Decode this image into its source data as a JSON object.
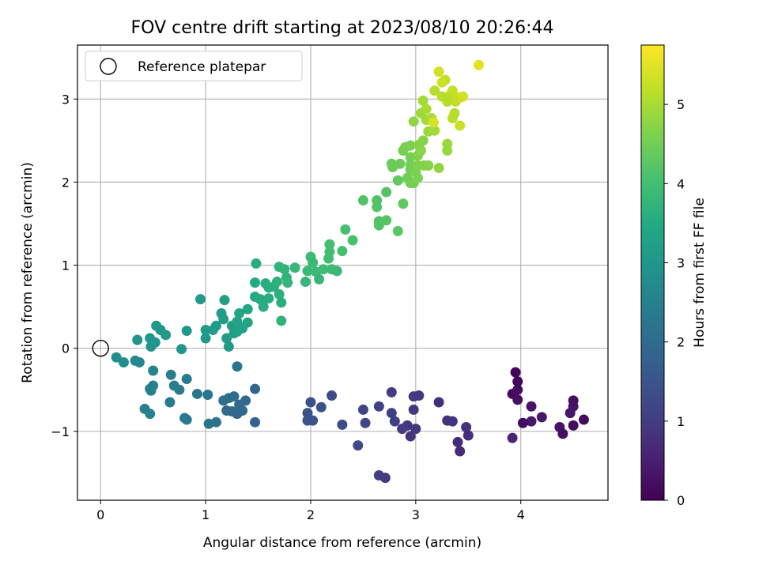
{
  "chart_data": {
    "type": "scatter",
    "title": "FOV centre drift starting at 2023/08/10 20:26:44",
    "xlabel": "Angular distance from reference (arcmin)",
    "ylabel": "Rotation from reference (arcmin)",
    "xlim": [
      -0.22,
      4.83
    ],
    "ylim": [
      -1.83,
      3.65
    ],
    "xticks": [
      0,
      1,
      2,
      3,
      4
    ],
    "yticks": [
      -1,
      0,
      1,
      2,
      3
    ],
    "grid": true,
    "colormap": "viridis",
    "colorbar": {
      "label": "Hours from first FF file",
      "range": [
        0,
        5.75
      ],
      "ticks": [
        0,
        1,
        2,
        3,
        4,
        5
      ]
    },
    "legend": {
      "placement": "top-left",
      "entries": [
        "Reference platepar"
      ]
    },
    "reference_point": {
      "x": 0,
      "y": 0
    },
    "points": [
      {
        "x": 3.95,
        "y": -0.29,
        "h": 0.05
      },
      {
        "x": 3.97,
        "y": -0.4,
        "h": 0.1
      },
      {
        "x": 3.92,
        "y": -0.55,
        "h": 0.15
      },
      {
        "x": 3.97,
        "y": -0.5,
        "h": 0.2
      },
      {
        "x": 3.97,
        "y": -0.62,
        "h": 0.25
      },
      {
        "x": 4.1,
        "y": -0.7,
        "h": 0.3
      },
      {
        "x": 4.1,
        "y": -0.88,
        "h": 0.35
      },
      {
        "x": 4.2,
        "y": -0.83,
        "h": 0.4
      },
      {
        "x": 4.02,
        "y": -0.9,
        "h": 0.2
      },
      {
        "x": 4.37,
        "y": -0.95,
        "h": 0.3
      },
      {
        "x": 4.4,
        "y": -1.03,
        "h": 0.25
      },
      {
        "x": 4.47,
        "y": -0.78,
        "h": 0.35
      },
      {
        "x": 4.5,
        "y": -0.7,
        "h": 0.3
      },
      {
        "x": 4.5,
        "y": -0.63,
        "h": 0.25
      },
      {
        "x": 4.5,
        "y": -0.93,
        "h": 0.2
      },
      {
        "x": 4.6,
        "y": -0.86,
        "h": 0.15
      },
      {
        "x": 3.92,
        "y": -1.08,
        "h": 0.6
      },
      {
        "x": 3.22,
        "y": -0.65,
        "h": 0.75
      },
      {
        "x": 3.3,
        "y": -0.87,
        "h": 0.8
      },
      {
        "x": 3.35,
        "y": -0.88,
        "h": 0.85
      },
      {
        "x": 3.48,
        "y": -0.95,
        "h": 0.8
      },
      {
        "x": 3.5,
        "y": -1.05,
        "h": 0.75
      },
      {
        "x": 3.4,
        "y": -1.13,
        "h": 0.7
      },
      {
        "x": 3.42,
        "y": -1.24,
        "h": 0.7
      },
      {
        "x": 2.98,
        "y": -0.58,
        "h": 1.0
      },
      {
        "x": 3.03,
        "y": -0.57,
        "h": 0.95
      },
      {
        "x": 2.98,
        "y": -0.74,
        "h": 0.9
      },
      {
        "x": 2.92,
        "y": -0.93,
        "h": 0.9
      },
      {
        "x": 2.95,
        "y": -1.06,
        "h": 0.85
      },
      {
        "x": 3.0,
        "y": -0.97,
        "h": 0.95
      },
      {
        "x": 2.87,
        "y": -0.97,
        "h": 1.0
      },
      {
        "x": 2.77,
        "y": -0.78,
        "h": 1.05
      },
      {
        "x": 2.77,
        "y": -0.53,
        "h": 1.0
      },
      {
        "x": 2.8,
        "y": -0.88,
        "h": 1.05
      },
      {
        "x": 2.65,
        "y": -0.7,
        "h": 1.1
      },
      {
        "x": 2.65,
        "y": -1.53,
        "h": 1.05
      },
      {
        "x": 2.71,
        "y": -1.56,
        "h": 1.0
      },
      {
        "x": 2.5,
        "y": -0.74,
        "h": 1.15
      },
      {
        "x": 2.52,
        "y": -0.9,
        "h": 1.2
      },
      {
        "x": 2.45,
        "y": -1.17,
        "h": 1.25
      },
      {
        "x": 2.3,
        "y": -0.92,
        "h": 1.3
      },
      {
        "x": 2.2,
        "y": -0.57,
        "h": 1.35
      },
      {
        "x": 2.1,
        "y": -0.71,
        "h": 1.4
      },
      {
        "x": 2.0,
        "y": -0.65,
        "h": 1.4
      },
      {
        "x": 1.97,
        "y": -0.78,
        "h": 1.45
      },
      {
        "x": 1.97,
        "y": -0.87,
        "h": 1.5
      },
      {
        "x": 2.02,
        "y": -0.87,
        "h": 1.45
      },
      {
        "x": 1.47,
        "y": -0.49,
        "h": 1.9
      },
      {
        "x": 1.47,
        "y": -0.89,
        "h": 1.85
      },
      {
        "x": 1.38,
        "y": -0.63,
        "h": 1.95
      },
      {
        "x": 1.35,
        "y": -0.75,
        "h": 2.0
      },
      {
        "x": 1.3,
        "y": -0.79,
        "h": 1.9
      },
      {
        "x": 1.25,
        "y": -0.76,
        "h": 1.95
      },
      {
        "x": 1.32,
        "y": -0.68,
        "h": 2.0
      },
      {
        "x": 1.22,
        "y": -0.6,
        "h": 2.05
      },
      {
        "x": 1.17,
        "y": -0.63,
        "h": 2.1
      },
      {
        "x": 1.27,
        "y": -0.58,
        "h": 2.05
      },
      {
        "x": 1.2,
        "y": -0.75,
        "h": 2.0
      },
      {
        "x": 1.3,
        "y": -0.22,
        "h": 2.2
      },
      {
        "x": 1.1,
        "y": -0.89,
        "h": 2.15
      },
      {
        "x": 1.03,
        "y": -0.91,
        "h": 2.2
      },
      {
        "x": 1.02,
        "y": -0.56,
        "h": 2.25
      },
      {
        "x": 0.92,
        "y": -0.55,
        "h": 2.3
      },
      {
        "x": 0.82,
        "y": -0.37,
        "h": 2.35
      },
      {
        "x": 0.8,
        "y": -0.84,
        "h": 2.3
      },
      {
        "x": 0.82,
        "y": -0.86,
        "h": 2.35
      },
      {
        "x": 0.75,
        "y": -0.5,
        "h": 2.4
      },
      {
        "x": 0.7,
        "y": -0.45,
        "h": 2.45
      },
      {
        "x": 0.67,
        "y": -0.32,
        "h": 2.45
      },
      {
        "x": 0.66,
        "y": -0.65,
        "h": 2.4
      },
      {
        "x": 0.5,
        "y": -0.45,
        "h": 2.5
      },
      {
        "x": 0.5,
        "y": -0.27,
        "h": 2.55
      },
      {
        "x": 0.48,
        "y": -0.51,
        "h": 2.5
      },
      {
        "x": 0.47,
        "y": -0.49,
        "h": 2.45
      },
      {
        "x": 0.42,
        "y": -0.73,
        "h": 2.5
      },
      {
        "x": 0.47,
        "y": -0.79,
        "h": 2.55
      },
      {
        "x": 0.37,
        "y": -0.17,
        "h": 2.65
      },
      {
        "x": 0.33,
        "y": -0.15,
        "h": 2.7
      },
      {
        "x": 0.22,
        "y": -0.17,
        "h": 2.75
      },
      {
        "x": 0.15,
        "y": -0.11,
        "h": 2.8
      },
      {
        "x": 0.35,
        "y": 0.1,
        "h": 2.95
      },
      {
        "x": 0.48,
        "y": 0.02,
        "h": 2.9
      },
      {
        "x": 0.47,
        "y": 0.12,
        "h": 2.95
      },
      {
        "x": 0.52,
        "y": 0.07,
        "h": 3.0
      },
      {
        "x": 0.53,
        "y": 0.27,
        "h": 3.05
      },
      {
        "x": 0.57,
        "y": 0.22,
        "h": 3.0
      },
      {
        "x": 0.62,
        "y": 0.16,
        "h": 3.05
      },
      {
        "x": 0.77,
        "y": -0.01,
        "h": 2.95
      },
      {
        "x": 0.82,
        "y": 0.21,
        "h": 3.05
      },
      {
        "x": 0.95,
        "y": 0.59,
        "h": 3.1
      },
      {
        "x": 1.0,
        "y": 0.12,
        "h": 3.05
      },
      {
        "x": 1.0,
        "y": 0.22,
        "h": 3.1
      },
      {
        "x": 1.07,
        "y": 0.22,
        "h": 3.15
      },
      {
        "x": 1.1,
        "y": 0.27,
        "h": 3.1
      },
      {
        "x": 1.15,
        "y": 0.42,
        "h": 3.15
      },
      {
        "x": 1.18,
        "y": 0.58,
        "h": 3.2
      },
      {
        "x": 1.17,
        "y": 0.35,
        "h": 3.2
      },
      {
        "x": 1.2,
        "y": 0.12,
        "h": 3.15
      },
      {
        "x": 1.22,
        "y": 0.02,
        "h": 3.1
      },
      {
        "x": 1.25,
        "y": 0.27,
        "h": 3.2
      },
      {
        "x": 1.27,
        "y": 0.18,
        "h": 3.25
      },
      {
        "x": 1.3,
        "y": 0.32,
        "h": 3.3
      },
      {
        "x": 1.3,
        "y": 0.2,
        "h": 3.25
      },
      {
        "x": 1.32,
        "y": 0.42,
        "h": 3.35
      },
      {
        "x": 1.35,
        "y": 0.24,
        "h": 3.3
      },
      {
        "x": 1.4,
        "y": 0.31,
        "h": 3.35
      },
      {
        "x": 1.4,
        "y": 0.47,
        "h": 3.4
      },
      {
        "x": 1.47,
        "y": 0.62,
        "h": 3.45
      },
      {
        "x": 1.47,
        "y": 0.79,
        "h": 3.5
      },
      {
        "x": 1.48,
        "y": 1.02,
        "h": 3.55
      },
      {
        "x": 1.52,
        "y": 0.59,
        "h": 3.5
      },
      {
        "x": 1.55,
        "y": 0.5,
        "h": 3.55
      },
      {
        "x": 1.57,
        "y": 0.78,
        "h": 3.55
      },
      {
        "x": 1.6,
        "y": 0.73,
        "h": 3.6
      },
      {
        "x": 1.6,
        "y": 0.6,
        "h": 3.55
      },
      {
        "x": 1.65,
        "y": 0.74,
        "h": 3.6
      },
      {
        "x": 1.68,
        "y": 0.8,
        "h": 3.65
      },
      {
        "x": 1.7,
        "y": 0.98,
        "h": 3.7
      },
      {
        "x": 1.7,
        "y": 0.65,
        "h": 3.65
      },
      {
        "x": 1.72,
        "y": 0.55,
        "h": 3.6
      },
      {
        "x": 1.72,
        "y": 0.33,
        "h": 3.7
      },
      {
        "x": 1.75,
        "y": 0.95,
        "h": 3.75
      },
      {
        "x": 1.77,
        "y": 0.85,
        "h": 3.7
      },
      {
        "x": 1.78,
        "y": 0.79,
        "h": 3.75
      },
      {
        "x": 1.85,
        "y": 0.97,
        "h": 3.8
      },
      {
        "x": 1.95,
        "y": 0.8,
        "h": 3.8
      },
      {
        "x": 1.97,
        "y": 0.93,
        "h": 3.85
      },
      {
        "x": 2.0,
        "y": 1.1,
        "h": 3.9
      },
      {
        "x": 2.02,
        "y": 1.03,
        "h": 3.85
      },
      {
        "x": 2.05,
        "y": 0.92,
        "h": 3.85
      },
      {
        "x": 2.08,
        "y": 0.83,
        "h": 3.8
      },
      {
        "x": 2.12,
        "y": 0.95,
        "h": 3.9
      },
      {
        "x": 2.17,
        "y": 1.08,
        "h": 3.95
      },
      {
        "x": 2.18,
        "y": 1.16,
        "h": 3.95
      },
      {
        "x": 2.18,
        "y": 1.25,
        "h": 4.0
      },
      {
        "x": 2.2,
        "y": 0.95,
        "h": 3.9
      },
      {
        "x": 2.25,
        "y": 0.93,
        "h": 3.85
      },
      {
        "x": 2.3,
        "y": 1.17,
        "h": 4.0
      },
      {
        "x": 2.33,
        "y": 1.43,
        "h": 4.05
      },
      {
        "x": 2.4,
        "y": 1.3,
        "h": 4.05
      },
      {
        "x": 2.5,
        "y": 1.78,
        "h": 4.15
      },
      {
        "x": 2.63,
        "y": 1.78,
        "h": 4.15
      },
      {
        "x": 2.63,
        "y": 1.7,
        "h": 4.2
      },
      {
        "x": 2.65,
        "y": 1.53,
        "h": 4.15
      },
      {
        "x": 2.65,
        "y": 1.48,
        "h": 4.15
      },
      {
        "x": 2.72,
        "y": 1.88,
        "h": 4.2
      },
      {
        "x": 2.72,
        "y": 1.54,
        "h": 4.2
      },
      {
        "x": 2.83,
        "y": 1.41,
        "h": 4.25
      },
      {
        "x": 2.83,
        "y": 2.02,
        "h": 4.35
      },
      {
        "x": 2.88,
        "y": 1.74,
        "h": 4.3
      },
      {
        "x": 2.77,
        "y": 2.22,
        "h": 4.4
      },
      {
        "x": 2.78,
        "y": 2.18,
        "h": 4.45
      },
      {
        "x": 2.85,
        "y": 2.22,
        "h": 4.45
      },
      {
        "x": 2.88,
        "y": 2.38,
        "h": 4.55
      },
      {
        "x": 2.9,
        "y": 2.42,
        "h": 4.6
      },
      {
        "x": 2.92,
        "y": 2.05,
        "h": 4.5
      },
      {
        "x": 2.95,
        "y": 2.44,
        "h": 4.6
      },
      {
        "x": 2.95,
        "y": 2.3,
        "h": 4.55
      },
      {
        "x": 2.95,
        "y": 2.21,
        "h": 4.55
      },
      {
        "x": 2.95,
        "y": 2.15,
        "h": 4.5
      },
      {
        "x": 2.95,
        "y": 1.99,
        "h": 4.5
      },
      {
        "x": 2.98,
        "y": 1.99,
        "h": 4.55
      },
      {
        "x": 3.0,
        "y": 2.12,
        "h": 4.6
      },
      {
        "x": 3.02,
        "y": 2.05,
        "h": 4.6
      },
      {
        "x": 3.02,
        "y": 2.2,
        "h": 4.65
      },
      {
        "x": 3.02,
        "y": 2.32,
        "h": 4.65
      },
      {
        "x": 3.03,
        "y": 2.45,
        "h": 4.7
      },
      {
        "x": 3.05,
        "y": 2.38,
        "h": 4.75
      },
      {
        "x": 3.07,
        "y": 2.5,
        "h": 4.7
      },
      {
        "x": 3.08,
        "y": 2.2,
        "h": 4.65
      },
      {
        "x": 3.12,
        "y": 2.2,
        "h": 4.7
      },
      {
        "x": 2.98,
        "y": 2.73,
        "h": 4.8
      },
      {
        "x": 3.05,
        "y": 2.83,
        "h": 4.9
      },
      {
        "x": 3.07,
        "y": 2.98,
        "h": 4.95
      },
      {
        "x": 3.1,
        "y": 2.88,
        "h": 5.0
      },
      {
        "x": 3.1,
        "y": 2.75,
        "h": 4.95
      },
      {
        "x": 3.12,
        "y": 2.61,
        "h": 4.9
      },
      {
        "x": 3.15,
        "y": 2.77,
        "h": 5.0
      },
      {
        "x": 3.18,
        "y": 2.62,
        "h": 4.95
      },
      {
        "x": 3.18,
        "y": 3.1,
        "h": 5.1
      },
      {
        "x": 3.22,
        "y": 2.17,
        "h": 4.8
      },
      {
        "x": 3.25,
        "y": 3.03,
        "h": 5.15
      },
      {
        "x": 3.28,
        "y": 3.23,
        "h": 5.2
      },
      {
        "x": 3.3,
        "y": 2.46,
        "h": 4.9
      },
      {
        "x": 3.3,
        "y": 2.38,
        "h": 4.85
      },
      {
        "x": 3.3,
        "y": 2.97,
        "h": 5.1
      },
      {
        "x": 3.33,
        "y": 3.05,
        "h": 5.15
      },
      {
        "x": 3.35,
        "y": 2.77,
        "h": 5.15
      },
      {
        "x": 3.37,
        "y": 2.83,
        "h": 5.1
      },
      {
        "x": 3.38,
        "y": 2.97,
        "h": 5.2
      },
      {
        "x": 3.42,
        "y": 3.02,
        "h": 5.25
      },
      {
        "x": 3.22,
        "y": 3.33,
        "h": 5.35
      },
      {
        "x": 3.25,
        "y": 3.2,
        "h": 5.3
      },
      {
        "x": 3.35,
        "y": 3.1,
        "h": 5.25
      },
      {
        "x": 3.42,
        "y": 2.68,
        "h": 5.3
      },
      {
        "x": 3.45,
        "y": 3.03,
        "h": 5.35
      },
      {
        "x": 3.6,
        "y": 3.41,
        "h": 5.5
      },
      {
        "x": 3.17,
        "y": 2.72,
        "h": 5.4
      }
    ]
  }
}
